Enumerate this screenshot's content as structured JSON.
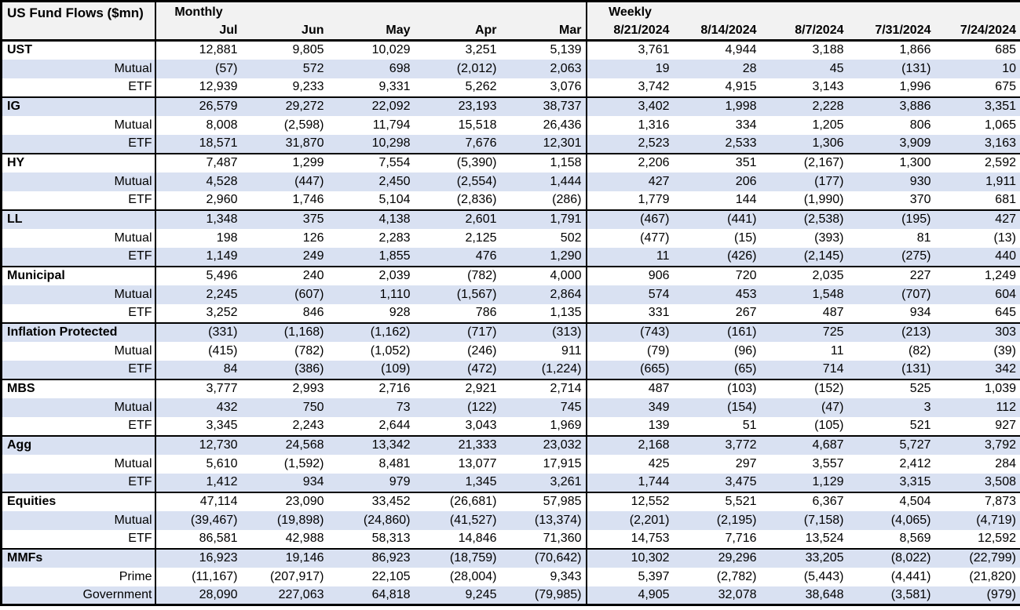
{
  "title": "US Fund Flows ($mn)",
  "sections": {
    "monthly_label": "Monthly",
    "weekly_label": "Weekly"
  },
  "columns": {
    "monthly": [
      "Jul",
      "Jun",
      "May",
      "Apr",
      "Mar"
    ],
    "weekly": [
      "8/21/2024",
      "8/14/2024",
      "8/7/2024",
      "7/31/2024",
      "7/24/2024"
    ]
  },
  "colors": {
    "band": "#d9e1f2",
    "header_bg": "#f2f2f2",
    "border": "#000000",
    "text": "#000000"
  },
  "rows": [
    {
      "label": "UST",
      "bold": true,
      "monthly": [
        "12,881",
        "9,805",
        "10,029",
        "3,251",
        "5,139"
      ],
      "weekly": [
        "3,761",
        "4,944",
        "3,188",
        "1,866",
        "685"
      ]
    },
    {
      "label": "Mutual",
      "bold": false,
      "monthly": [
        "(57)",
        "572",
        "698",
        "(2,012)",
        "2,063"
      ],
      "weekly": [
        "19",
        "28",
        "45",
        "(131)",
        "10"
      ]
    },
    {
      "label": "ETF",
      "bold": false,
      "monthly": [
        "12,939",
        "9,233",
        "9,331",
        "5,262",
        "3,076"
      ],
      "weekly": [
        "3,742",
        "4,915",
        "3,143",
        "1,996",
        "675"
      ]
    },
    {
      "label": "IG",
      "bold": true,
      "monthly": [
        "26,579",
        "29,272",
        "22,092",
        "23,193",
        "38,737"
      ],
      "weekly": [
        "3,402",
        "1,998",
        "2,228",
        "3,886",
        "3,351"
      ]
    },
    {
      "label": "Mutual",
      "bold": false,
      "monthly": [
        "8,008",
        "(2,598)",
        "11,794",
        "15,518",
        "26,436"
      ],
      "weekly": [
        "1,316",
        "334",
        "1,205",
        "806",
        "1,065"
      ]
    },
    {
      "label": "ETF",
      "bold": false,
      "monthly": [
        "18,571",
        "31,870",
        "10,298",
        "7,676",
        "12,301"
      ],
      "weekly": [
        "2,523",
        "2,533",
        "1,306",
        "3,909",
        "3,163"
      ]
    },
    {
      "label": "HY",
      "bold": true,
      "monthly": [
        "7,487",
        "1,299",
        "7,554",
        "(5,390)",
        "1,158"
      ],
      "weekly": [
        "2,206",
        "351",
        "(2,167)",
        "1,300",
        "2,592"
      ]
    },
    {
      "label": "Mutual",
      "bold": false,
      "monthly": [
        "4,528",
        "(447)",
        "2,450",
        "(2,554)",
        "1,444"
      ],
      "weekly": [
        "427",
        "206",
        "(177)",
        "930",
        "1,911"
      ]
    },
    {
      "label": "ETF",
      "bold": false,
      "monthly": [
        "2,960",
        "1,746",
        "5,104",
        "(2,836)",
        "(286)"
      ],
      "weekly": [
        "1,779",
        "144",
        "(1,990)",
        "370",
        "681"
      ]
    },
    {
      "label": "LL",
      "bold": true,
      "monthly": [
        "1,348",
        "375",
        "4,138",
        "2,601",
        "1,791"
      ],
      "weekly": [
        "(467)",
        "(441)",
        "(2,538)",
        "(195)",
        "427"
      ]
    },
    {
      "label": "Mutual",
      "bold": false,
      "monthly": [
        "198",
        "126",
        "2,283",
        "2,125",
        "502"
      ],
      "weekly": [
        "(477)",
        "(15)",
        "(393)",
        "81",
        "(13)"
      ]
    },
    {
      "label": "ETF",
      "bold": false,
      "monthly": [
        "1,149",
        "249",
        "1,855",
        "476",
        "1,290"
      ],
      "weekly": [
        "11",
        "(426)",
        "(2,145)",
        "(275)",
        "440"
      ]
    },
    {
      "label": "Municipal",
      "bold": true,
      "monthly": [
        "5,496",
        "240",
        "2,039",
        "(782)",
        "4,000"
      ],
      "weekly": [
        "906",
        "720",
        "2,035",
        "227",
        "1,249"
      ]
    },
    {
      "label": "Mutual",
      "bold": false,
      "monthly": [
        "2,245",
        "(607)",
        "1,110",
        "(1,567)",
        "2,864"
      ],
      "weekly": [
        "574",
        "453",
        "1,548",
        "(707)",
        "604"
      ]
    },
    {
      "label": "ETF",
      "bold": false,
      "monthly": [
        "3,252",
        "846",
        "928",
        "786",
        "1,135"
      ],
      "weekly": [
        "331",
        "267",
        "487",
        "934",
        "645"
      ]
    },
    {
      "label": "Inflation Protected",
      "bold": true,
      "monthly": [
        "(331)",
        "(1,168)",
        "(1,162)",
        "(717)",
        "(313)"
      ],
      "weekly": [
        "(743)",
        "(161)",
        "725",
        "(213)",
        "303"
      ]
    },
    {
      "label": "Mutual",
      "bold": false,
      "monthly": [
        "(415)",
        "(782)",
        "(1,052)",
        "(246)",
        "911"
      ],
      "weekly": [
        "(79)",
        "(96)",
        "11",
        "(82)",
        "(39)"
      ]
    },
    {
      "label": "ETF",
      "bold": false,
      "monthly": [
        "84",
        "(386)",
        "(109)",
        "(472)",
        "(1,224)"
      ],
      "weekly": [
        "(665)",
        "(65)",
        "714",
        "(131)",
        "342"
      ]
    },
    {
      "label": "MBS",
      "bold": true,
      "monthly": [
        "3,777",
        "2,993",
        "2,716",
        "2,921",
        "2,714"
      ],
      "weekly": [
        "487",
        "(103)",
        "(152)",
        "525",
        "1,039"
      ]
    },
    {
      "label": "Mutual",
      "bold": false,
      "monthly": [
        "432",
        "750",
        "73",
        "(122)",
        "745"
      ],
      "weekly": [
        "349",
        "(154)",
        "(47)",
        "3",
        "112"
      ]
    },
    {
      "label": "ETF",
      "bold": false,
      "monthly": [
        "3,345",
        "2,243",
        "2,644",
        "3,043",
        "1,969"
      ],
      "weekly": [
        "139",
        "51",
        "(105)",
        "521",
        "927"
      ]
    },
    {
      "label": "Agg",
      "bold": true,
      "monthly": [
        "12,730",
        "24,568",
        "13,342",
        "21,333",
        "23,032"
      ],
      "weekly": [
        "2,168",
        "3,772",
        "4,687",
        "5,727",
        "3,792"
      ]
    },
    {
      "label": "Mutual",
      "bold": false,
      "monthly": [
        "5,610",
        "(1,592)",
        "8,481",
        "13,077",
        "17,915"
      ],
      "weekly": [
        "425",
        "297",
        "3,557",
        "2,412",
        "284"
      ]
    },
    {
      "label": "ETF",
      "bold": false,
      "monthly": [
        "1,412",
        "934",
        "979",
        "1,345",
        "3,261"
      ],
      "weekly": [
        "1,744",
        "3,475",
        "1,129",
        "3,315",
        "3,508"
      ]
    },
    {
      "label": "Equities",
      "bold": true,
      "monthly": [
        "47,114",
        "23,090",
        "33,452",
        "(26,681)",
        "57,985"
      ],
      "weekly": [
        "12,552",
        "5,521",
        "6,367",
        "4,504",
        "7,873"
      ]
    },
    {
      "label": "Mutual",
      "bold": false,
      "monthly": [
        "(39,467)",
        "(19,898)",
        "(24,860)",
        "(41,527)",
        "(13,374)"
      ],
      "weekly": [
        "(2,201)",
        "(2,195)",
        "(7,158)",
        "(4,065)",
        "(4,719)"
      ]
    },
    {
      "label": "ETF",
      "bold": false,
      "monthly": [
        "86,581",
        "42,988",
        "58,313",
        "14,846",
        "71,360"
      ],
      "weekly": [
        "14,753",
        "7,716",
        "13,524",
        "8,569",
        "12,592"
      ]
    },
    {
      "label": "MMFs",
      "bold": true,
      "monthly": [
        "16,923",
        "19,146",
        "86,923",
        "(18,759)",
        "(70,642)"
      ],
      "weekly": [
        "10,302",
        "29,296",
        "33,205",
        "(8,022)",
        "(22,799)"
      ]
    },
    {
      "label": "Prime",
      "bold": false,
      "monthly": [
        "(11,167)",
        "(207,917)",
        "22,105",
        "(28,004)",
        "9,343"
      ],
      "weekly": [
        "5,397",
        "(2,782)",
        "(5,443)",
        "(4,441)",
        "(21,820)"
      ]
    },
    {
      "label": "Government",
      "bold": false,
      "monthly": [
        "28,090",
        "227,063",
        "64,818",
        "9,245",
        "(79,985)"
      ],
      "weekly": [
        "4,905",
        "32,078",
        "38,648",
        "(3,581)",
        "(979)"
      ]
    }
  ]
}
